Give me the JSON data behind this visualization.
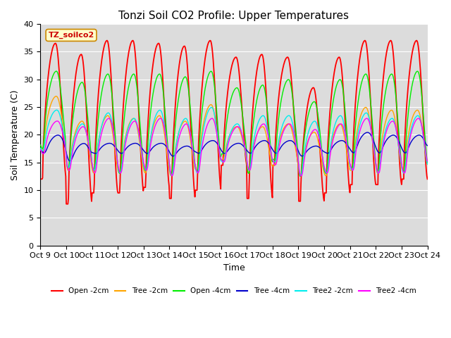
{
  "title": "Tonzi Soil CO2 Profile: Upper Temperatures",
  "xlabel": "Time",
  "ylabel": "Soil Temperature (C)",
  "ylim": [
    0,
    40
  ],
  "n_days": 15,
  "xtick_labels": [
    "Oct 9",
    "Oct 10",
    "Oct 11",
    "Oct 12",
    "Oct 13",
    "Oct 14",
    "Oct 15",
    "Oct 16",
    "Oct 17",
    "Oct 18",
    "Oct 19",
    "Oct 20",
    "Oct 21",
    "Oct 22",
    "Oct 23",
    "Oct 24"
  ],
  "series": [
    {
      "name": "Open -2cm",
      "color": "#FF0000"
    },
    {
      "name": "Tree -2cm",
      "color": "#FFA500"
    },
    {
      "name": "Open -4cm",
      "color": "#00EE00"
    },
    {
      "name": "Tree -4cm",
      "color": "#0000CC"
    },
    {
      "name": "Tree2 -2cm",
      "color": "#00EEEE"
    },
    {
      "name": "Tree2 -4cm",
      "color": "#FF00FF"
    }
  ],
  "annotation_text": "TZ_soilco2",
  "annotation_color": "#CC0000",
  "annotation_bg": "#FFFFCC",
  "annotation_border": "#CC8800",
  "bg_color": "#DCDCDC",
  "grid_color": "#FFFFFF",
  "title_fontsize": 11,
  "axis_label_fontsize": 9,
  "tick_fontsize": 8
}
